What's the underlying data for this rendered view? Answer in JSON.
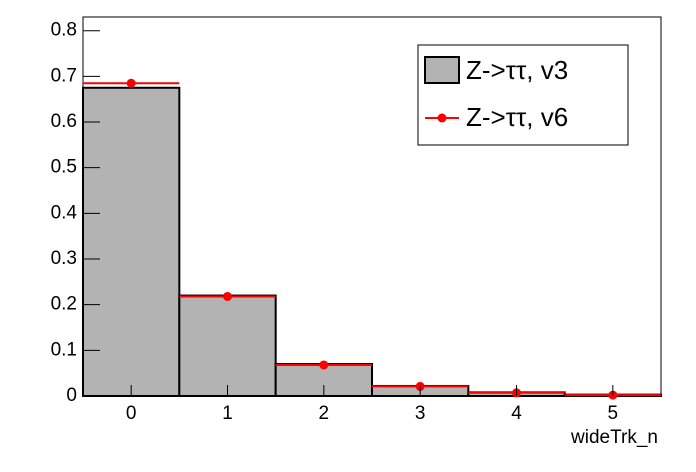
{
  "chart_data": {
    "type": "histogram",
    "x_label": "wideTrk_n",
    "bins": [
      -0.5,
      0.5,
      1.5,
      2.5,
      3.5,
      4.5,
      5.5
    ],
    "series": [
      {
        "name": "Z->ττ, v3",
        "color": "#b3b3b3",
        "values": [
          0.675,
          0.22,
          0.07,
          0.022,
          0.008,
          0.003
        ]
      },
      {
        "name": "Z->ττ, v6",
        "color": "#ff0000",
        "values": [
          0.685,
          0.218,
          0.068,
          0.021,
          0.007,
          0.002
        ]
      }
    ],
    "xlim": [
      -0.5,
      5.5
    ],
    "xticks": [
      0,
      1,
      2,
      3,
      4,
      5
    ],
    "ylim": [
      0,
      0.83
    ],
    "yticks": [
      0,
      0.1,
      0.2,
      0.3,
      0.4,
      0.5,
      0.6,
      0.7,
      0.8
    ]
  }
}
